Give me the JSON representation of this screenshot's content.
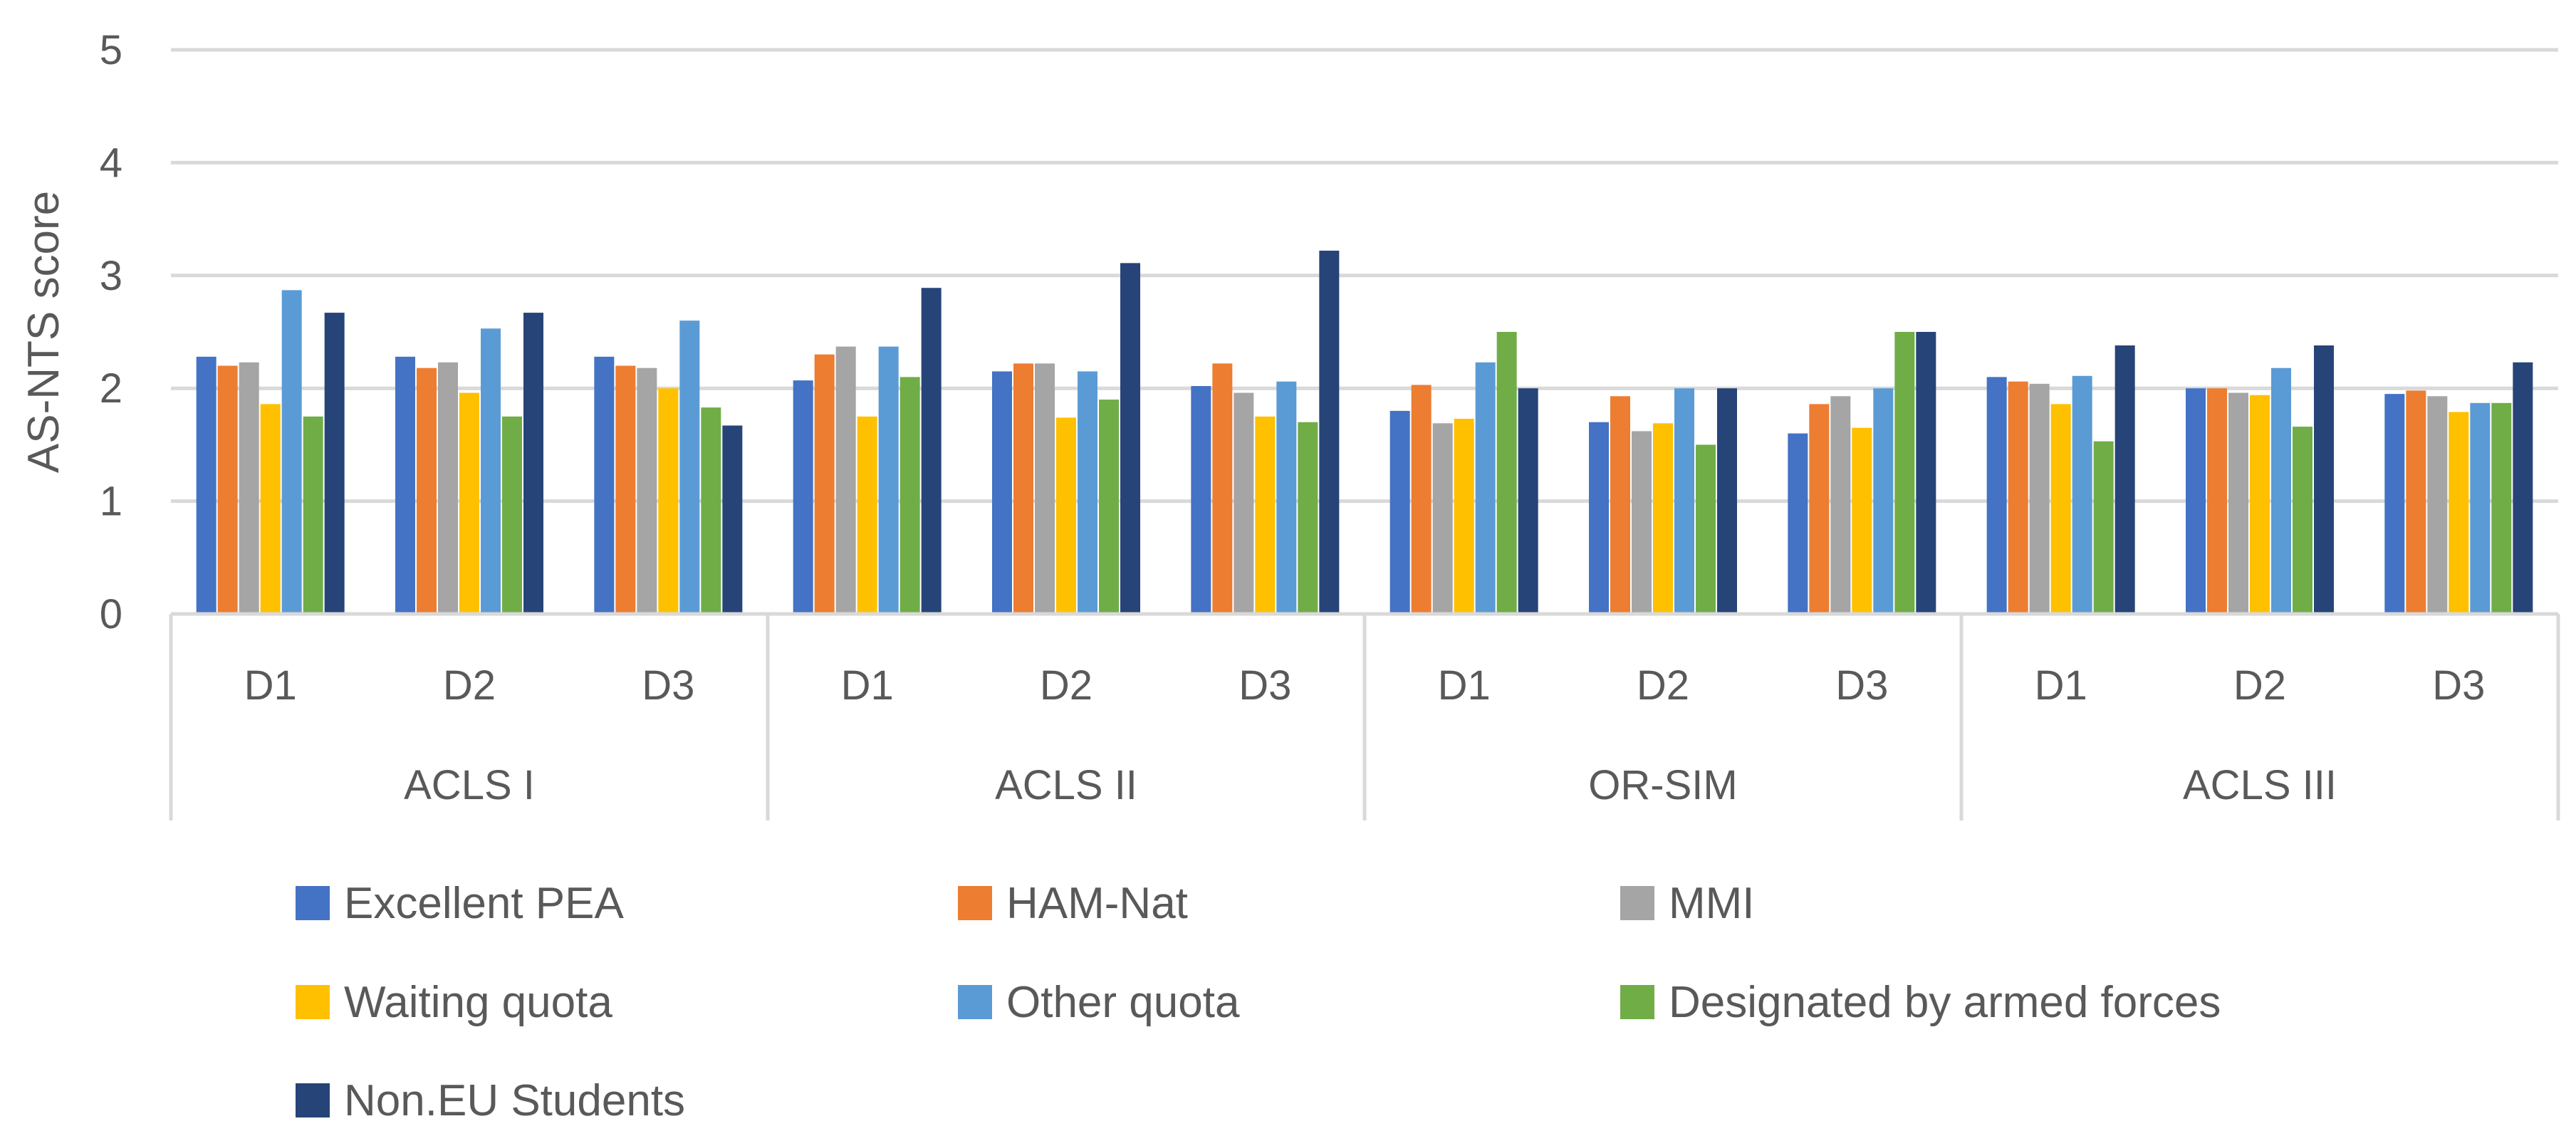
{
  "chart_data": {
    "type": "bar",
    "ylabel": "AS-NTS score",
    "ylim": [
      0,
      5
    ],
    "yticks": [
      "0",
      "1",
      "2",
      "3",
      "4",
      "5"
    ],
    "grid": true,
    "legend_position": "bottom",
    "groups": [
      {
        "label": "ACLS I",
        "categories": [
          "D1",
          "D2",
          "D3"
        ]
      },
      {
        "label": "ACLS II",
        "categories": [
          "D1",
          "D2",
          "D3"
        ]
      },
      {
        "label": "OR-SIM",
        "categories": [
          "D1",
          "D2",
          "D3"
        ]
      },
      {
        "label": "ACLS III",
        "categories": [
          "D1",
          "D2",
          "D3"
        ]
      }
    ],
    "series": [
      {
        "name": "Excellent PEA",
        "color": "#4472C4",
        "values": [
          2.28,
          2.28,
          2.28,
          2.07,
          2.15,
          2.02,
          1.8,
          1.7,
          1.6,
          2.1,
          2.0,
          1.95
        ]
      },
      {
        "name": "HAM-Nat",
        "color": "#ED7D31",
        "values": [
          2.2,
          2.18,
          2.2,
          2.3,
          2.22,
          2.22,
          2.03,
          1.93,
          1.86,
          2.06,
          2.0,
          1.98
        ]
      },
      {
        "name": "MMI",
        "color": "#A5A5A5",
        "values": [
          2.23,
          2.23,
          2.18,
          2.37,
          2.22,
          1.96,
          1.69,
          1.62,
          1.93,
          2.04,
          1.96,
          1.93
        ]
      },
      {
        "name": "Waiting quota",
        "color": "#FFC000",
        "values": [
          1.86,
          1.96,
          2.0,
          1.75,
          1.74,
          1.75,
          1.73,
          1.69,
          1.65,
          1.86,
          1.94,
          1.79
        ]
      },
      {
        "name": "Other quota",
        "color": "#5B9BD5",
        "values": [
          2.87,
          2.53,
          2.6,
          2.37,
          2.15,
          2.06,
          2.23,
          2.0,
          2.0,
          2.11,
          2.18,
          1.87
        ]
      },
      {
        "name": "Designated by armed forces",
        "color": "#70AD47",
        "values": [
          1.75,
          1.75,
          1.83,
          2.1,
          1.9,
          1.7,
          2.5,
          1.5,
          2.5,
          1.53,
          1.66,
          1.87
        ]
      },
      {
        "name": "Non.EU Students",
        "color": "#264478",
        "values": [
          2.67,
          2.67,
          1.67,
          2.89,
          3.11,
          3.22,
          2.0,
          2.0,
          2.5,
          2.38,
          2.38,
          2.23
        ]
      }
    ]
  }
}
